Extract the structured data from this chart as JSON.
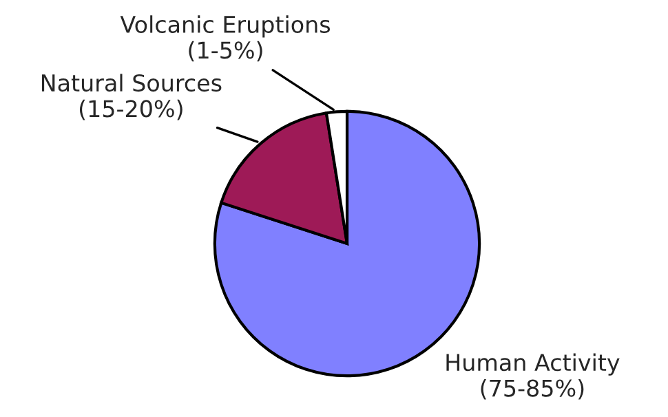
{
  "chart_data": {
    "type": "pie",
    "categories": [
      "Human Activity",
      "Natural Sources",
      "Volcanic Eruptions"
    ],
    "values": [
      80,
      17.5,
      2.5
    ],
    "colors": [
      "#8080ff",
      "#9e1a57",
      "#ffffff"
    ],
    "annotations": [
      "(75-85%)",
      "(15-20%)",
      "(1-5%)"
    ]
  }
}
